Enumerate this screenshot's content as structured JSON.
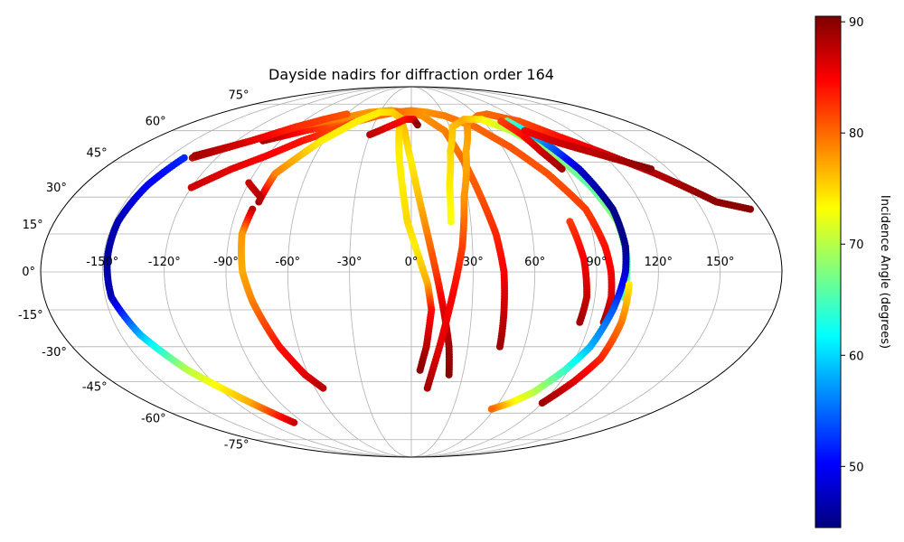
{
  "chart_data": {
    "type": "scatter",
    "projection": "mollweide",
    "title": "Dayside nadirs for diffraction order 164",
    "grid": true,
    "lon_ticks": [
      -150,
      -120,
      -90,
      -60,
      -30,
      0,
      30,
      60,
      90,
      120,
      150
    ],
    "lon_tick_labels": [
      "-150°",
      "-120°",
      "-90°",
      "-60°",
      "-30°",
      "0°",
      "30°",
      "60°",
      "90°",
      "120°",
      "150°"
    ],
    "lat_ticks": [
      -75,
      -60,
      -45,
      -30,
      -15,
      0,
      15,
      30,
      45,
      60,
      75
    ],
    "lat_tick_labels": [
      "-75°",
      "-60°",
      "-45°",
      "-30°",
      "-15°",
      "0°",
      "15°",
      "30°",
      "45°",
      "60°",
      "75°"
    ],
    "colorbar": {
      "label": "Incidence Angle (degrees)",
      "range": [
        44.5,
        90.5
      ],
      "ticks": [
        50,
        60,
        70,
        80,
        90
      ],
      "tick_labels": [
        "50",
        "60",
        "70",
        "80",
        "90"
      ],
      "colormap": "jet"
    },
    "series": [
      {
        "points": [
          [
            -102,
            55,
            89
          ],
          [
            -80,
            60,
            84
          ],
          [
            -55,
            64,
            80
          ],
          [
            -35,
            68,
            78
          ],
          [
            -20,
            70,
            76
          ],
          [
            -10,
            68,
            77
          ],
          [
            -5,
            60,
            76
          ],
          [
            0,
            45,
            74
          ],
          [
            4,
            30,
            76
          ],
          [
            8,
            15,
            79
          ],
          [
            12,
            0,
            82
          ],
          [
            16,
            -15,
            86
          ],
          [
            20,
            -30,
            89
          ],
          [
            22,
            -42,
            90
          ]
        ]
      },
      {
        "points": [
          [
            -135,
            47,
            88
          ],
          [
            -110,
            55,
            86
          ],
          [
            -90,
            62,
            82
          ],
          [
            -65,
            66,
            79
          ],
          [
            -40,
            70,
            78
          ],
          [
            -20,
            71,
            78
          ],
          [
            -5,
            70,
            79
          ],
          [
            10,
            68,
            78
          ],
          [
            25,
            60,
            79
          ],
          [
            32,
            45,
            80
          ],
          [
            37,
            30,
            81
          ],
          [
            42,
            15,
            83
          ],
          [
            45,
            0,
            85
          ],
          [
            46,
            -15,
            87
          ],
          [
            47,
            -30,
            89
          ]
        ]
      },
      {
        "points": [
          [
            -120,
            34,
            87
          ],
          [
            -105,
            42,
            86
          ],
          [
            -90,
            48,
            85
          ],
          [
            -75,
            55,
            84
          ],
          [
            -60,
            60,
            82
          ],
          [
            -45,
            65,
            81
          ],
          [
            -30,
            68,
            80
          ],
          [
            -15,
            70,
            80
          ],
          [
            0,
            71,
            79
          ],
          [
            15,
            70,
            78
          ],
          [
            30,
            68,
            79
          ],
          [
            50,
            62,
            80
          ],
          [
            65,
            52,
            81
          ],
          [
            78,
            40,
            81
          ],
          [
            90,
            25,
            82
          ],
          [
            95,
            10,
            84
          ],
          [
            97,
            0,
            85
          ],
          [
            98,
            -10,
            86
          ],
          [
            97,
            -20,
            89
          ]
        ]
      },
      {
        "points": [
          [
            -140,
            47,
            52
          ],
          [
            -145,
            35,
            50
          ],
          [
            -148,
            20,
            47
          ],
          [
            -148,
            5,
            46
          ],
          [
            -147,
            -10,
            47
          ],
          [
            -140,
            -25,
            58
          ],
          [
            -128,
            -40,
            70
          ],
          [
            -110,
            -55,
            77
          ],
          [
            -98,
            -65,
            87
          ]
        ]
      },
      {
        "points": [
          [
            -80,
            28,
            89
          ],
          [
            -78,
            40,
            79
          ],
          [
            -62,
            55,
            74
          ],
          [
            -45,
            65,
            74
          ],
          [
            -30,
            70,
            74
          ],
          [
            -18,
            70,
            75
          ],
          [
            -10,
            67,
            76
          ],
          [
            -8,
            50,
            74
          ],
          [
            -5,
            35,
            74
          ],
          [
            -2,
            20,
            75
          ],
          [
            2,
            10,
            74
          ],
          [
            8,
            -5,
            77
          ],
          [
            10,
            -15,
            84
          ],
          [
            8,
            -30,
            88
          ],
          [
            5,
            -40,
            90
          ]
        ]
      },
      {
        "points": [
          [
            -135,
            48,
            89
          ],
          [
            -110,
            55,
            86
          ],
          [
            -90,
            62,
            83
          ],
          [
            -75,
            66,
            82
          ],
          [
            -60,
            69,
            81
          ]
        ]
      },
      {
        "points": [
          [
            -90,
            36,
            87
          ],
          [
            -80,
            30,
            88
          ]
        ]
      },
      {
        "points": [
          [
            -82,
            25,
            88
          ],
          [
            -84,
            15,
            78
          ],
          [
            -82,
            0,
            77
          ],
          [
            -78,
            -12,
            79
          ],
          [
            -70,
            -30,
            84
          ],
          [
            -62,
            -42,
            86
          ],
          [
            -55,
            -48,
            88
          ]
        ]
      },
      {
        "points": [
          [
            -30,
            58,
            88
          ],
          [
            -18,
            62,
            86
          ],
          [
            -5,
            66,
            84
          ],
          [
            2,
            66,
            86
          ],
          [
            5,
            63,
            90
          ]
        ]
      },
      {
        "points": [
          [
            10,
            -48,
            89
          ],
          [
            15,
            -30,
            86
          ],
          [
            20,
            -10,
            85
          ],
          [
            25,
            10,
            82
          ],
          [
            28,
            30,
            78
          ],
          [
            35,
            50,
            77
          ],
          [
            45,
            64,
            78
          ],
          [
            60,
            68,
            80
          ],
          [
            70,
            69,
            80
          ],
          [
            90,
            65,
            81
          ],
          [
            105,
            57,
            84
          ],
          [
            120,
            50,
            86
          ],
          [
            140,
            40,
            88
          ],
          [
            160,
            28,
            90
          ],
          [
            175,
            25,
            90
          ]
        ]
      },
      {
        "points": [
          [
            20,
            20,
            73
          ],
          [
            21,
            35,
            74
          ],
          [
            25,
            50,
            75
          ],
          [
            32,
            62,
            76
          ],
          [
            45,
            66,
            77
          ],
          [
            60,
            66,
            74
          ],
          [
            75,
            60,
            70
          ],
          [
            90,
            48,
            68
          ],
          [
            98,
            35,
            66
          ],
          [
            104,
            20,
            68
          ],
          [
            105,
            5,
            66
          ],
          [
            104,
            -10,
            66
          ]
        ]
      },
      {
        "points": [
          [
            80,
            65,
            66
          ],
          [
            90,
            55,
            57
          ],
          [
            98,
            42,
            48
          ],
          [
            104,
            25,
            45
          ],
          [
            105,
            10,
            45
          ],
          [
            104,
            0,
            48
          ],
          [
            100,
            -15,
            54
          ],
          [
            95,
            -30,
            58
          ],
          [
            88,
            -40,
            64
          ],
          [
            78,
            -50,
            70
          ],
          [
            68,
            -55,
            74
          ],
          [
            58,
            -58,
            80
          ]
        ]
      },
      {
        "points": [
          [
            106,
            -5,
            74
          ],
          [
            106,
            -20,
            79
          ],
          [
            104,
            -35,
            83
          ],
          [
            98,
            -45,
            86
          ],
          [
            90,
            -55,
            89
          ]
        ]
      },
      {
        "points": [
          [
            75,
            65,
            82
          ],
          [
            80,
            58,
            84
          ],
          [
            83,
            50,
            87
          ],
          [
            88,
            42,
            89
          ]
        ]
      },
      {
        "points": [
          [
            85,
            60,
            85
          ],
          [
            100,
            54,
            87
          ],
          [
            120,
            48,
            88
          ],
          [
            140,
            42,
            90
          ]
        ]
      },
      {
        "points": [
          [
            80,
            20,
            82
          ],
          [
            84,
            5,
            85
          ],
          [
            86,
            -10,
            87
          ],
          [
            85,
            -20,
            89
          ]
        ]
      }
    ]
  }
}
